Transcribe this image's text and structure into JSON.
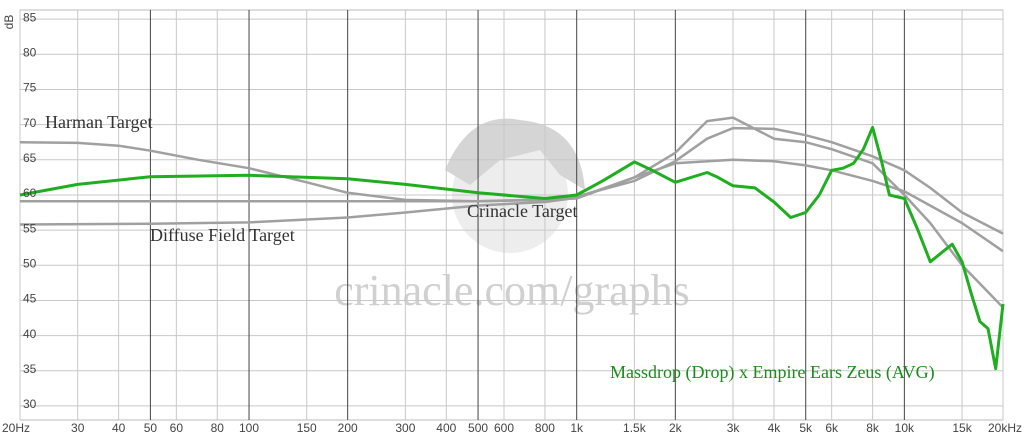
{
  "chart_data": {
    "type": "line",
    "xscale": "log",
    "ylabel": "dB",
    "watermark": "crinacle.com/graphs",
    "xlim": [
      20,
      20000
    ],
    "ylim": [
      28,
      86.3
    ],
    "xticks": [
      {
        "value": 20,
        "label": "20Hz"
      },
      30,
      40,
      50,
      60,
      80,
      100,
      150,
      200,
      300,
      400,
      500,
      600,
      800,
      {
        "value": 1000,
        "label": "1k"
      },
      {
        "value": 1500,
        "label": "1.5k"
      },
      {
        "value": 2000,
        "label": "2k"
      },
      {
        "value": 3000,
        "label": "3k"
      },
      {
        "value": 4000,
        "label": "4k"
      },
      {
        "value": 5000,
        "label": "5k"
      },
      {
        "value": 6000,
        "label": "6k"
      },
      {
        "value": 8000,
        "label": "8k"
      },
      {
        "value": 10000,
        "label": "10k"
      },
      {
        "value": 15000,
        "label": "15k"
      },
      {
        "value": 20000,
        "label": "20kHz"
      }
    ],
    "yticks": [
      30,
      35,
      40,
      45,
      50,
      55,
      60,
      65,
      70,
      75,
      80,
      85
    ],
    "grid": true,
    "series": [
      {
        "name": "Harman Target",
        "color": "#a0a0a0",
        "x": [
          20,
          30,
          40,
          50,
          70,
          100,
          150,
          200,
          300,
          500,
          800,
          1000,
          1500,
          2000,
          2500,
          3000,
          4000,
          5000,
          6000,
          8000,
          10000,
          12000,
          15000,
          20000
        ],
        "values": [
          67.5,
          67.4,
          67,
          66.3,
          65,
          63.8,
          61.8,
          60.3,
          59.3,
          59.1,
          59.3,
          59.8,
          62,
          64.8,
          68,
          69.5,
          69.4,
          68.5,
          67.5,
          65.5,
          63.5,
          61,
          57.5,
          54.5
        ]
      },
      {
        "name": "Diffuse Field Target",
        "color": "#a0a0a0",
        "x": [
          20,
          50,
          100,
          200,
          300,
          500,
          800,
          1000,
          1500,
          2000,
          2500,
          3000,
          4000,
          5000,
          6000,
          8000,
          10000,
          12000,
          15000,
          20000
        ],
        "values": [
          55.8,
          55.9,
          56.1,
          56.8,
          57.5,
          58.5,
          59,
          59.6,
          62.5,
          66,
          70.5,
          71,
          68,
          67.5,
          66.5,
          64.5,
          60,
          56,
          50,
          44
        ]
      },
      {
        "name": "Crinacle Target",
        "color": "#a0a0a0",
        "x": [
          20,
          100,
          500,
          1000,
          1500,
          2000,
          3000,
          4000,
          5000,
          6000,
          8000,
          10000,
          15000,
          20000
        ],
        "values": [
          59.1,
          59.1,
          59.1,
          59.5,
          62.5,
          64.5,
          65,
          64.8,
          64.2,
          63.5,
          62,
          60.5,
          56,
          52
        ]
      },
      {
        "name": "Massdrop (Drop) x Empire Ears Zeus (AVG)",
        "color": "#1fae1f",
        "x": [
          20,
          30,
          50,
          100,
          200,
          300,
          500,
          800,
          1000,
          1200,
          1500,
          1700,
          2000,
          2500,
          2700,
          3000,
          3500,
          4000,
          4500,
          5000,
          5500,
          6000,
          6500,
          7000,
          7500,
          8000,
          8500,
          9000,
          10000,
          11000,
          12000,
          13000,
          14000,
          15000,
          16000,
          17000,
          18000,
          19000,
          20000
        ],
        "values": [
          60,
          61.5,
          62.6,
          62.8,
          62.3,
          61.5,
          60.3,
          59.5,
          60,
          62,
          64.7,
          63.5,
          61.8,
          63.2,
          62.5,
          61.3,
          61,
          59,
          56.8,
          57.5,
          60,
          63.5,
          63.8,
          64.5,
          66.5,
          69.6,
          65,
          60,
          59.5,
          55,
          50.5,
          51.8,
          53,
          50.5,
          46,
          42,
          41,
          35.3,
          44.5
        ]
      }
    ]
  }
}
